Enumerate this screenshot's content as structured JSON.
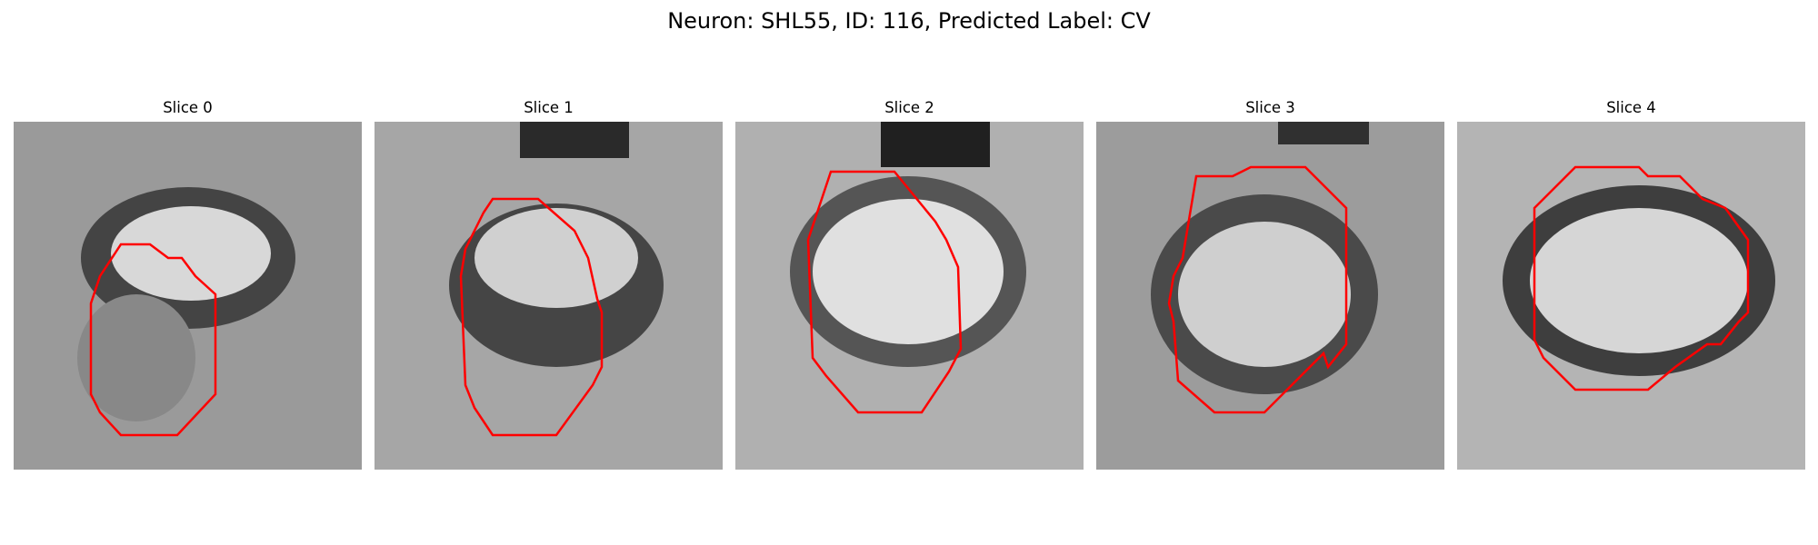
{
  "figure": {
    "title": "Neuron: SHL55, ID: 116, Predicted Label: CV",
    "contour_color": "#ff0000",
    "colormap": "gray"
  },
  "panels": [
    {
      "title": "Slice 0"
    },
    {
      "title": "Slice 1"
    },
    {
      "title": "Slice 2"
    },
    {
      "title": "Slice 3"
    },
    {
      "title": "Slice 4"
    }
  ]
}
